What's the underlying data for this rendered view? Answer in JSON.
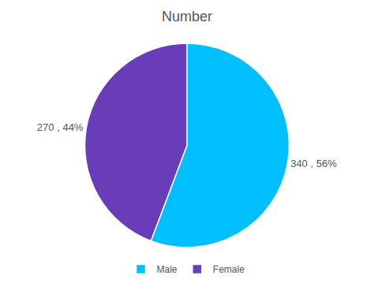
{
  "chart_data": {
    "type": "pie",
    "title": "Number",
    "categories": [
      "Male",
      "Female"
    ],
    "values": [
      340,
      270
    ],
    "value_labels": [
      "340 , 56%",
      "270 , 44%"
    ],
    "colors": [
      "#00BFFF",
      "#6A3DB8"
    ],
    "data_labels": true,
    "legend": "bottom"
  }
}
